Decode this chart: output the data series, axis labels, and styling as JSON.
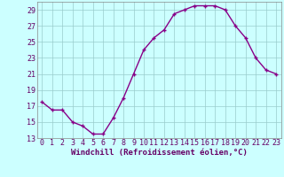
{
  "x": [
    0,
    1,
    2,
    3,
    4,
    5,
    6,
    7,
    8,
    9,
    10,
    11,
    12,
    13,
    14,
    15,
    16,
    17,
    18,
    19,
    20,
    21,
    22,
    23
  ],
  "y": [
    17.5,
    16.5,
    16.5,
    15.0,
    14.5,
    13.5,
    13.5,
    15.5,
    18.0,
    21.0,
    24.0,
    25.5,
    26.5,
    28.5,
    29.0,
    29.5,
    29.5,
    29.5,
    29.0,
    27.0,
    25.5,
    23.0,
    21.5,
    21.0
  ],
  "line_color": "#880088",
  "marker": "+",
  "marker_size": 3,
  "line_width": 1.0,
  "background_color": "#ccffff",
  "grid_color": "#99cccc",
  "xlabel": "Windchill (Refroidissement éolien,°C)",
  "xlabel_fontsize": 6.5,
  "tick_fontsize": 6,
  "ylim": [
    13,
    30
  ],
  "xlim": [
    -0.5,
    23.5
  ],
  "yticks": [
    13,
    15,
    17,
    19,
    21,
    23,
    25,
    27,
    29
  ],
  "xticks": [
    0,
    1,
    2,
    3,
    4,
    5,
    6,
    7,
    8,
    9,
    10,
    11,
    12,
    13,
    14,
    15,
    16,
    17,
    18,
    19,
    20,
    21,
    22,
    23
  ]
}
